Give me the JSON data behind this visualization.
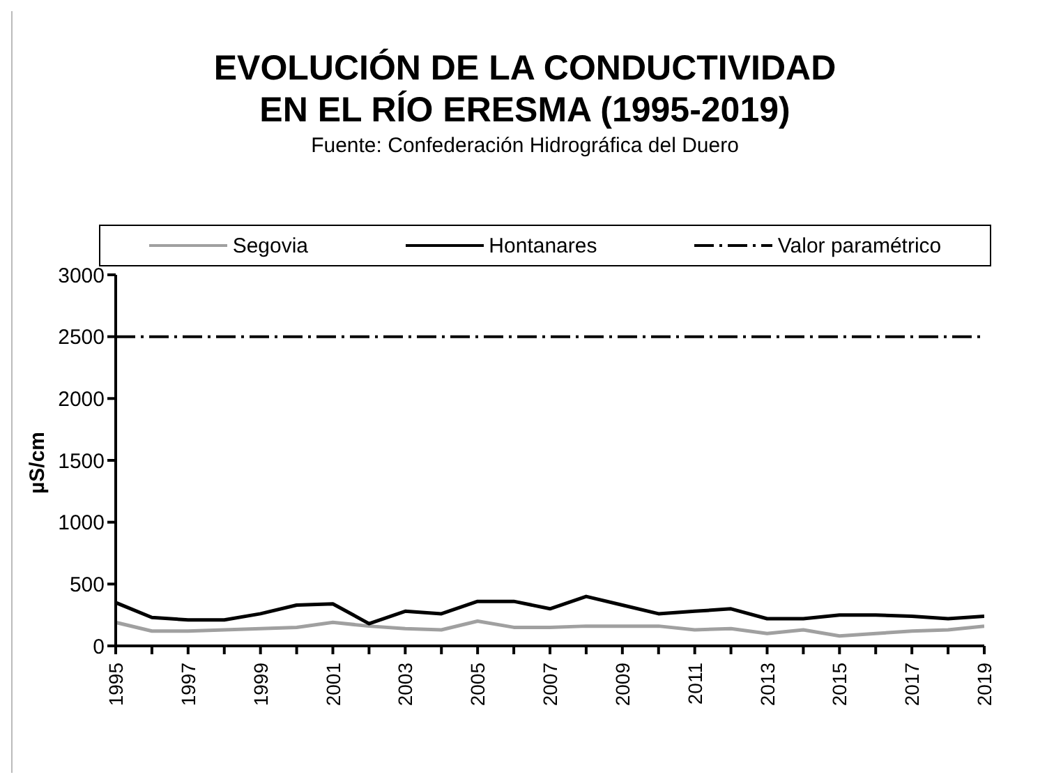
{
  "chart_data": {
    "type": "line",
    "title": "EVOLUCIÓN DE LA CONDUCTIVIDAD\nEN EL RÍO ERESMA (1995-2019)",
    "subtitle": "Fuente: Confederación Hidrográfica del Duero",
    "ylabel": "µS/cm",
    "x": [
      1995,
      1996,
      1997,
      1998,
      1999,
      2000,
      2001,
      2002,
      2003,
      2004,
      2005,
      2006,
      2007,
      2008,
      2009,
      2010,
      2011,
      2012,
      2013,
      2014,
      2015,
      2016,
      2017,
      2018,
      2019
    ],
    "series": [
      {
        "name": "Segovia",
        "color": "#a0a0a0",
        "values": [
          190,
          120,
          120,
          130,
          140,
          150,
          190,
          160,
          140,
          130,
          200,
          150,
          150,
          160,
          160,
          160,
          130,
          140,
          100,
          130,
          80,
          100,
          120,
          130,
          160
        ]
      },
      {
        "name": "Hontanares",
        "color": "#000000",
        "values": [
          350,
          230,
          210,
          210,
          260,
          330,
          340,
          180,
          280,
          260,
          360,
          360,
          300,
          400,
          330,
          260,
          280,
          300,
          220,
          220,
          250,
          250,
          240,
          220,
          240
        ]
      }
    ],
    "ref_lines": [
      {
        "axis": "y",
        "value": 2500,
        "label": "Valor paramétrico",
        "color": "#000000",
        "line_style": "dashdot"
      }
    ],
    "xlim": [
      1995,
      2019
    ],
    "xticks": [
      1995,
      {
        "value": 1996,
        "label": null
      },
      1997,
      {
        "value": 1998,
        "label": null
      },
      1999,
      {
        "value": 2000,
        "label": null
      },
      2001,
      {
        "value": 2002,
        "label": null
      },
      2003,
      {
        "value": 2004,
        "label": null
      },
      2005,
      {
        "value": 2006,
        "label": null
      },
      2007,
      {
        "value": 2008,
        "label": null
      },
      2009,
      {
        "value": 2010,
        "label": null
      },
      2011,
      {
        "value": 2012,
        "label": null
      },
      2013,
      {
        "value": 2014,
        "label": null
      },
      2015,
      {
        "value": 2016,
        "label": null
      },
      2017,
      {
        "value": 2018,
        "label": null
      },
      2019
    ],
    "ylim": [
      0,
      3000
    ],
    "yticks": [
      0,
      500,
      1000,
      1500,
      2000,
      2500,
      3000
    ],
    "grid": false,
    "legend": "top",
    "marker": "none",
    "line_style": "solid"
  }
}
